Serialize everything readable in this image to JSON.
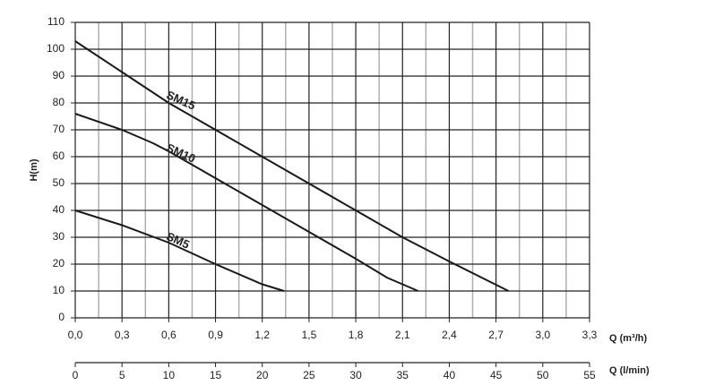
{
  "chart_data": {
    "type": "line",
    "y_label": "H(m)",
    "x_label": "Q (m³/h)",
    "x2_label": "Q (l/min)",
    "xlim": [
      0,
      3.3
    ],
    "xticks": [
      {
        "value": 0,
        "label": "0,0"
      },
      {
        "value": 0.3,
        "label": "0,3"
      },
      {
        "value": 0.6,
        "label": "0,6"
      },
      {
        "value": 0.9,
        "label": "0,9"
      },
      {
        "value": 1.2,
        "label": "1,2"
      },
      {
        "value": 1.5,
        "label": "1,5"
      },
      {
        "value": 1.8,
        "label": "1,8"
      },
      {
        "value": 2.1,
        "label": "2,1"
      },
      {
        "value": 2.4,
        "label": "2,4"
      },
      {
        "value": 2.7,
        "label": "2,7"
      },
      {
        "value": 3.0,
        "label": "3,0"
      },
      {
        "value": 3.3,
        "label": "3,3"
      }
    ],
    "x_minor_gridlines": [
      0.15,
      0.45,
      0.75,
      1.05,
      1.35,
      1.65,
      1.95,
      2.25,
      2.55,
      2.85,
      3.15
    ],
    "x2lim": [
      0,
      55
    ],
    "x2ticks": [
      0,
      5,
      10,
      15,
      20,
      25,
      30,
      35,
      40,
      45,
      50,
      55
    ],
    "ylim": [
      0,
      110
    ],
    "yticks": [
      0,
      10,
      20,
      30,
      40,
      50,
      60,
      70,
      80,
      90,
      100,
      110
    ],
    "grid": true,
    "series": [
      {
        "name": "SM15",
        "color": "#1a1a1a",
        "x": [
          0,
          0.3,
          0.6,
          0.9,
          1.2,
          1.5,
          1.8,
          2.1,
          2.4,
          2.78
        ],
        "values": [
          103,
          91.5,
          80,
          70,
          60,
          50,
          40,
          30,
          21,
          10
        ]
      },
      {
        "name": "SM10",
        "color": "#1a1a1a",
        "x": [
          0,
          0.3,
          0.5,
          0.6,
          0.9,
          1.2,
          1.5,
          1.8,
          2.0,
          2.2
        ],
        "values": [
          76,
          70,
          65,
          62,
          52,
          42,
          32,
          22,
          15,
          10
        ]
      },
      {
        "name": "SM5",
        "color": "#1a1a1a",
        "x": [
          0,
          0.3,
          0.6,
          0.9,
          1.2,
          1.34
        ],
        "values": [
          40,
          34.5,
          28,
          20,
          12.5,
          10
        ]
      }
    ]
  }
}
